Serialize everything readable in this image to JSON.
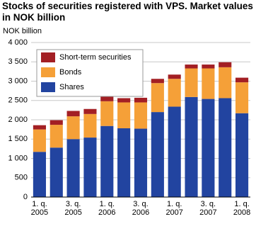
{
  "chart_data": {
    "type": "stacked-bar",
    "title": "Stocks of securities registered with VPS. Market values in NOK billion",
    "y_label": "NOK billion",
    "categories": [
      "1. q. 2005",
      null,
      "3. q. 2005",
      null,
      "1. q. 2006",
      null,
      "3. q. 2006",
      null,
      "1. q. 2007",
      null,
      "3. q. 2007",
      null,
      "1. q. 2008"
    ],
    "series": [
      {
        "name": "Shares",
        "color": "#2244a0",
        "values": [
          1170,
          1280,
          1500,
          1540,
          1840,
          1780,
          1770,
          2200,
          2340,
          2590,
          2540,
          2560,
          2170
        ]
      },
      {
        "name": "Bonds",
        "color": "#f5a038",
        "values": [
          580,
          590,
          590,
          610,
          640,
          670,
          680,
          750,
          720,
          740,
          790,
          800,
          800
        ]
      },
      {
        "name": "Short-term securities",
        "color": "#a31f24",
        "values": [
          110,
          120,
          140,
          130,
          140,
          110,
          120,
          110,
          110,
          100,
          100,
          130,
          120
        ]
      }
    ],
    "ylim": [
      0,
      4000
    ],
    "yticks": [
      0,
      500,
      {
        "value": 1000,
        "label": "1 000"
      },
      {
        "value": 1500,
        "label": "1 500"
      },
      {
        "value": 2000,
        "label": "2 000"
      },
      {
        "value": 2500,
        "label": "2 500"
      },
      {
        "value": 3000,
        "label": "3 000"
      },
      {
        "value": 3500,
        "label": "3 500"
      },
      {
        "value": 4000,
        "label": "4 000"
      }
    ],
    "grid": true
  }
}
